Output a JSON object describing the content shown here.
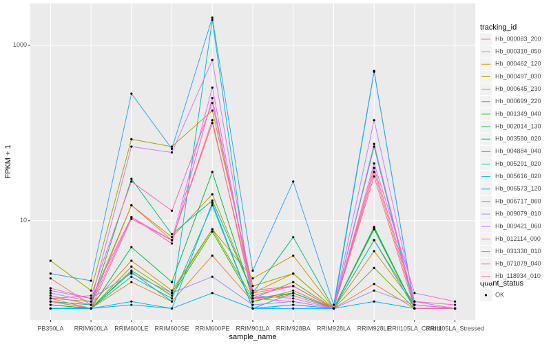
{
  "chart_data": {
    "type": "line",
    "xlabel": "sample_name",
    "ylabel": "FPKM + 1",
    "legend_title": "tracking_id",
    "log_y": true,
    "grid": true,
    "legend_position": "right",
    "categories": [
      "PB350LA",
      "RRIM600LA",
      "RRIM600LE",
      "RRIM600SE",
      "RRIM600PE",
      "RRIM901LA",
      "RRIM928BA",
      "RRIM928LA",
      "RRIM928LE",
      "RRII105LA_Control",
      "RRII105LA_Stressed"
    ],
    "ylim": [
      0.74,
      3000
    ],
    "yticks": [
      10,
      1000
    ],
    "point_legend": {
      "title": "quant_status",
      "labels": [
        "OK"
      ],
      "color": "#000000"
    },
    "series": [
      {
        "name": "Hb_000083_200",
        "color": "#F8766D",
        "values": [
          2.2,
          1.1,
          15,
          6,
          130,
          1.5,
          1.8,
          1.0,
          36,
          1.1,
          1.0
        ]
      },
      {
        "name": "Hb_000310_050",
        "color": "#EA8331",
        "values": [
          1.3,
          1.0,
          2.0,
          1.2,
          4.0,
          1.2,
          1.6,
          1.0,
          1.9,
          1.0,
          1.0
        ]
      },
      {
        "name": "Hb_000462_120",
        "color": "#D89000",
        "values": [
          1.4,
          1.1,
          3.5,
          1.6,
          8.0,
          2.2,
          4.0,
          1.0,
          4.5,
          1.1,
          1.0
        ]
      },
      {
        "name": "Hb_000497_030",
        "color": "#C09B00",
        "values": [
          1.3,
          1.2,
          15,
          6.5,
          20,
          1.5,
          2.5,
          1.0,
          8.0,
          1.0,
          1.0
        ]
      },
      {
        "name": "Hb_000645_230",
        "color": "#A3A500",
        "values": [
          3.5,
          1.6,
          85,
          70,
          180,
          1.8,
          2.5,
          1.0,
          6,
          1.1,
          1.0
        ]
      },
      {
        "name": "Hb_000699_220",
        "color": "#7CAE00",
        "values": [
          1.2,
          1.0,
          3.0,
          1.5,
          8.0,
          1.3,
          2.0,
          1.0,
          2.9,
          1.0,
          1.0
        ]
      },
      {
        "name": "Hb_001349_040",
        "color": "#39B600",
        "values": [
          1.1,
          1.0,
          2.7,
          1.4,
          7.5,
          1.2,
          1.5,
          1.0,
          8.0,
          1.0,
          1.0
        ]
      },
      {
        "name": "Hb_002014_130",
        "color": "#00BB4E",
        "values": [
          1.1,
          1.0,
          5.0,
          2.0,
          36,
          1.3,
          1.5,
          1.0,
          8.5,
          1.0,
          1.0
        ]
      },
      {
        "name": "Hb_003580_020",
        "color": "#00BF7D",
        "values": [
          1.2,
          1.1,
          30,
          7.0,
          17,
          1.5,
          6.5,
          1.0,
          8.3,
          1.0,
          1.0
        ]
      },
      {
        "name": "Hb_004884_040",
        "color": "#00C1A3",
        "values": [
          1.0,
          1.0,
          2.3,
          1.3,
          15,
          1.0,
          1.5,
          1.0,
          70,
          1.0,
          1.0
        ]
      },
      {
        "name": "Hb_005291_020",
        "color": "#00BFC4",
        "values": [
          1.0,
          1.0,
          2.6,
          1.2,
          1950,
          1.0,
          1.1,
          1.0,
          500,
          1.0,
          1.0
        ]
      },
      {
        "name": "Hb_005616_020",
        "color": "#00BAE0",
        "values": [
          1.0,
          1.0,
          1.2,
          1.0,
          16,
          1.0,
          1.1,
          1.0,
          6.0,
          1.0,
          1.0
        ]
      },
      {
        "name": "Hb_006573_120",
        "color": "#00B0F6",
        "values": [
          1.0,
          1.0,
          1.1,
          1.0,
          1.5,
          1.0,
          1.0,
          1.0,
          1.2,
          1.0,
          1.0
        ]
      },
      {
        "name": "Hb_006717_060",
        "color": "#35A2FF",
        "values": [
          2.5,
          2.07,
          281,
          66,
          2070,
          2.7,
          28,
          1.1,
          510,
          1.0,
          1.0
        ]
      },
      {
        "name": "Hb_009079_010",
        "color": "#9590FF",
        "values": [
          1.6,
          1.3,
          2.5,
          1.5,
          2.3,
          1.1,
          1.2,
          1.0,
          1.6,
          1.1,
          1.0
        ]
      },
      {
        "name": "Hb_009421_060",
        "color": "#C77CFF",
        "values": [
          1.5,
          1.2,
          70,
          60,
          680,
          1.4,
          1.3,
          1.0,
          140,
          1.2,
          1.0
        ]
      },
      {
        "name": "Hb_012114_090",
        "color": "#E76BF3",
        "values": [
          1.4,
          1.1,
          11,
          6.0,
          330,
          1.3,
          1.2,
          1.0,
          75,
          1.1,
          1.0
        ]
      },
      {
        "name": "Hb_031330_010",
        "color": "#FA62DB",
        "values": [
          1.7,
          1.3,
          11,
          5.5,
          250,
          1.4,
          1.8,
          1.0,
          45,
          1.5,
          1.2
        ]
      },
      {
        "name": "Hb_071079_040",
        "color": "#FF62BC",
        "values": [
          1.3,
          1.4,
          28,
          13,
          220,
          1.6,
          1.8,
          1.0,
          40,
          1.2,
          1.1
        ]
      },
      {
        "name": "Hb_118934_010",
        "color": "#FF6C91",
        "values": [
          1.2,
          1.0,
          10.5,
          6.0,
          140,
          1.3,
          1.4,
          1.0,
          32,
          1.0,
          1.0
        ]
      }
    ]
  }
}
